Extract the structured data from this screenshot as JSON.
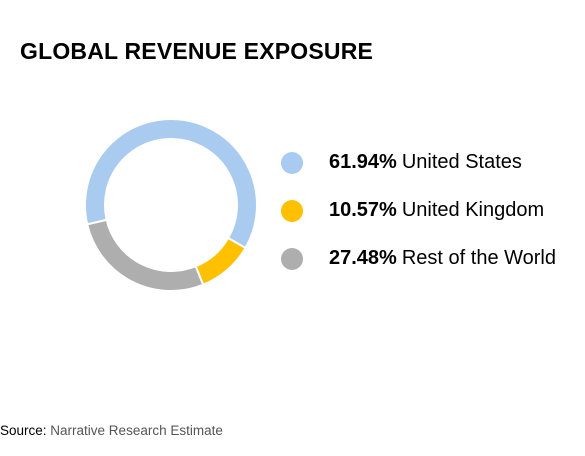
{
  "title": "GLOBAL REVENUE EXPOSURE",
  "chart_data": {
    "type": "pie",
    "subtype": "donut",
    "title": "GLOBAL REVENUE EXPOSURE",
    "categories": [
      "United States",
      "United Kingdom",
      "Rest of the World"
    ],
    "values": [
      61.94,
      10.57,
      27.48
    ],
    "value_labels": [
      "61.94%",
      "10.57%",
      "27.48%"
    ],
    "colors": [
      "#a9cbef",
      "#ffc000",
      "#aeaeae"
    ],
    "legend_placement": "right"
  },
  "source": {
    "label": "Source:",
    "value": "Narrative Research Estimate"
  }
}
